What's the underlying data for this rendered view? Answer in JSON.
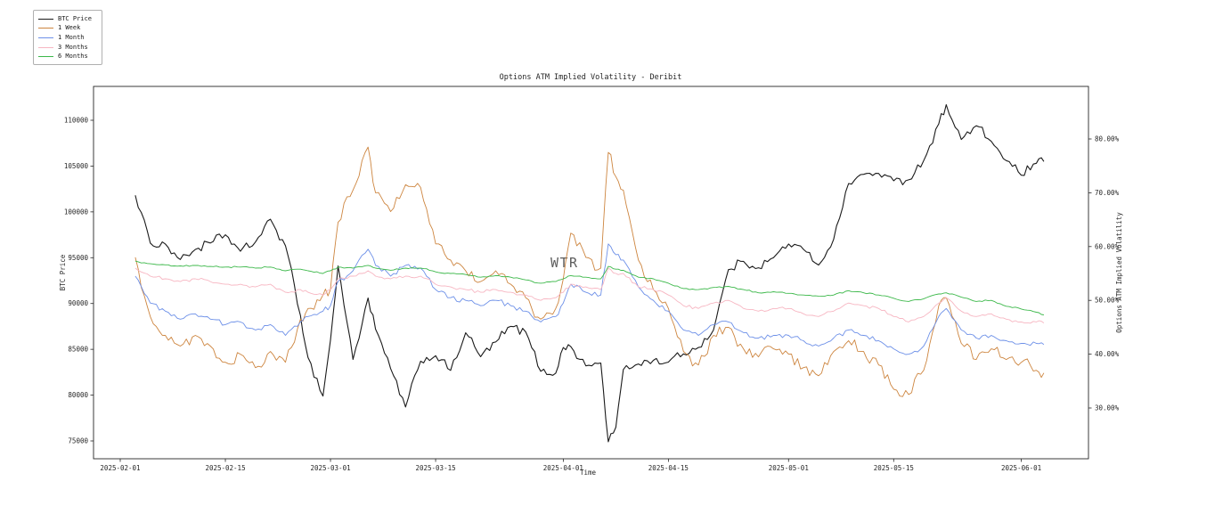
{
  "title": "Options ATM Implied Volatility - Deribit",
  "watermark": "WTR",
  "axes": {
    "x": {
      "label": "Time",
      "ticks": [
        "2025-02-01",
        "2025-02-15",
        "2025-03-01",
        "2025-03-15",
        "2025-04-01",
        "2025-04-15",
        "2025-05-01",
        "2025-05-15",
        "2025-06-01"
      ]
    },
    "y_left": {
      "label": "BTC Price",
      "ticks": [
        "110000",
        "105000",
        "100000",
        "95000",
        "90000",
        "85000",
        "80000",
        "75000"
      ]
    },
    "y_right": {
      "label": "Options ATM Implied Volatility",
      "ticks": [
        "80.00%",
        "70.00%",
        "60.00%",
        "50.00%",
        "40.00%",
        "30.00%"
      ]
    }
  },
  "legend": [
    {
      "label": "BTC Price",
      "color": "#1a1a1a"
    },
    {
      "label": "1 Week",
      "color": "#cd853f"
    },
    {
      "label": "1 Month",
      "color": "#6d90e8"
    },
    {
      "label": "3 Months",
      "color": "#f7b6c2"
    },
    {
      "label": "6 Months",
      "color": "#3cb84a"
    }
  ],
  "chart_data": {
    "type": "line",
    "title": "Options ATM Implied Volatility - Deribit",
    "xlabel": "Time",
    "ylabel_left": "BTC Price",
    "ylabel_right": "Options ATM Implied Volatility",
    "x_tick_labels": [
      "2025-02-01",
      "2025-02-15",
      "2025-03-01",
      "2025-03-15",
      "2025-04-01",
      "2025-04-15",
      "2025-05-01",
      "2025-05-15",
      "2025-06-01"
    ],
    "y_left_ticks": [
      110000,
      105000,
      100000,
      95000,
      90000,
      85000,
      80000,
      75000
    ],
    "y_right_ticks_pct": [
      80,
      70,
      60,
      50,
      40,
      30
    ],
    "grid": false,
    "legend_position": "outside-top-left",
    "dates": [
      "2025-02-03",
      "2025-02-05",
      "2025-02-07",
      "2025-02-09",
      "2025-02-11",
      "2025-02-13",
      "2025-02-15",
      "2025-02-17",
      "2025-02-19",
      "2025-02-21",
      "2025-02-23",
      "2025-02-25",
      "2025-02-26",
      "2025-02-28",
      "2025-03-01",
      "2025-03-02",
      "2025-03-04",
      "2025-03-06",
      "2025-03-07",
      "2025-03-09",
      "2025-03-11",
      "2025-03-13",
      "2025-03-15",
      "2025-03-17",
      "2025-03-19",
      "2025-03-21",
      "2025-03-23",
      "2025-03-25",
      "2025-03-27",
      "2025-03-29",
      "2025-03-31",
      "2025-04-01",
      "2025-04-02",
      "2025-04-04",
      "2025-04-06",
      "2025-04-07",
      "2025-04-08",
      "2025-04-09",
      "2025-04-11",
      "2025-04-13",
      "2025-04-15",
      "2025-04-17",
      "2025-04-19",
      "2025-04-21",
      "2025-04-23",
      "2025-04-25",
      "2025-04-27",
      "2025-04-29",
      "2025-05-01",
      "2025-05-03",
      "2025-05-05",
      "2025-05-07",
      "2025-05-09",
      "2025-05-11",
      "2025-05-13",
      "2025-05-15",
      "2025-05-17",
      "2025-05-19",
      "2025-05-21",
      "2025-05-22",
      "2025-05-24",
      "2025-05-26",
      "2025-05-28",
      "2025-05-30",
      "2025-06-01",
      "2025-06-03",
      "2025-06-04"
    ],
    "series": [
      {
        "name": "BTC Price",
        "axis": "left",
        "color": "#1a1a1a",
        "unit": "USD",
        "values": [
          101800,
          96600,
          96500,
          94800,
          95900,
          96600,
          97500,
          95700,
          96700,
          99200,
          96300,
          88700,
          84100,
          79900,
          86000,
          94100,
          83900,
          90600,
          87200,
          82900,
          78700,
          83700,
          84300,
          82700,
          86800,
          84200,
          85800,
          87500,
          86900,
          82600,
          82400,
          85200,
          85300,
          83200,
          83500,
          74900,
          76500,
          82800,
          83400,
          83800,
          83600,
          84500,
          85200,
          87100,
          93700,
          94600,
          93900,
          95000,
          96500,
          95900,
          94200,
          97000,
          103100,
          104100,
          104200,
          103400,
          103500,
          105600,
          109600,
          111700,
          107900,
          109400,
          107700,
          105600,
          104000,
          105300,
          105500
        ]
      },
      {
        "name": "1 Week",
        "axis": "right",
        "color": "#cd853f",
        "unit": "%",
        "values": [
          58.0,
          47.0,
          43.5,
          41.5,
          43.5,
          41.5,
          38.5,
          40.0,
          37.5,
          40.5,
          38.5,
          46.5,
          48.5,
          51.0,
          52.0,
          64.5,
          70.5,
          78.5,
          70.0,
          66.5,
          71.5,
          71.0,
          60.5,
          57.5,
          55.5,
          53.5,
          55.5,
          53.0,
          50.5,
          46.5,
          48.5,
          54.0,
          62.5,
          58.0,
          56.0,
          77.5,
          73.0,
          70.5,
          57.5,
          52.0,
          48.5,
          40.5,
          38.0,
          43.5,
          45.0,
          41.0,
          39.5,
          41.0,
          40.0,
          37.5,
          36.0,
          40.5,
          42.5,
          40.5,
          38.0,
          33.5,
          32.5,
          37.0,
          49.0,
          50.5,
          42.0,
          39.0,
          41.0,
          39.0,
          38.5,
          37.0,
          36.5
        ]
      },
      {
        "name": "1 Month",
        "axis": "right",
        "color": "#6d90e8",
        "unit": "%",
        "values": [
          54.5,
          49.5,
          48.0,
          46.5,
          47.5,
          46.5,
          45.5,
          46.0,
          44.5,
          45.5,
          43.5,
          46.0,
          47.0,
          48.0,
          49.0,
          53.5,
          55.5,
          59.5,
          56.5,
          54.5,
          56.5,
          56.0,
          52.0,
          50.5,
          50.0,
          49.0,
          50.0,
          49.0,
          48.0,
          46.0,
          47.0,
          49.5,
          53.0,
          51.5,
          51.0,
          60.5,
          58.5,
          57.5,
          52.5,
          50.0,
          48.0,
          44.5,
          43.5,
          45.5,
          46.0,
          44.0,
          43.0,
          43.5,
          43.5,
          42.5,
          41.5,
          43.0,
          44.5,
          43.5,
          42.5,
          41.0,
          40.0,
          41.5,
          47.0,
          48.5,
          44.5,
          43.0,
          43.5,
          42.5,
          42.0,
          42.0,
          41.8
        ]
      },
      {
        "name": "3 Months",
        "axis": "right",
        "color": "#f7b6c2",
        "unit": "%",
        "values": [
          56.0,
          54.5,
          54.0,
          53.5,
          54.0,
          53.5,
          53.0,
          53.0,
          52.5,
          53.0,
          51.5,
          52.0,
          51.5,
          51.0,
          52.0,
          54.0,
          54.5,
          55.5,
          54.5,
          54.0,
          54.5,
          54.5,
          53.0,
          52.5,
          52.0,
          51.5,
          52.0,
          51.5,
          51.0,
          50.0,
          50.5,
          51.5,
          53.0,
          52.5,
          52.0,
          56.0,
          55.0,
          55.0,
          52.5,
          52.0,
          51.0,
          49.0,
          48.5,
          49.5,
          50.0,
          48.5,
          48.0,
          48.5,
          48.5,
          47.5,
          47.0,
          48.0,
          49.5,
          49.0,
          48.5,
          47.0,
          46.0,
          47.0,
          49.5,
          50.5,
          48.0,
          47.0,
          47.5,
          46.5,
          46.0,
          46.0,
          45.8
        ]
      },
      {
        "name": "6 Months",
        "axis": "right",
        "color": "#3cb84a",
        "unit": "%",
        "values": [
          57.3,
          56.8,
          56.6,
          56.4,
          56.5,
          56.3,
          56.2,
          56.2,
          56.0,
          56.2,
          55.5,
          55.8,
          55.5,
          55.0,
          55.5,
          56.2,
          56.0,
          56.5,
          56.0,
          55.6,
          56.0,
          56.0,
          55.3,
          55.0,
          54.8,
          54.3,
          54.6,
          54.3,
          53.8,
          53.2,
          53.5,
          54.0,
          54.6,
          54.3,
          54.0,
          56.3,
          55.8,
          55.6,
          54.3,
          54.0,
          53.2,
          52.2,
          52.0,
          52.4,
          52.6,
          52.0,
          51.4,
          51.6,
          51.3,
          51.0,
          50.8,
          51.0,
          51.8,
          51.4,
          51.0,
          50.4,
          49.8,
          50.3,
          51.2,
          51.4,
          50.6,
          49.8,
          50.0,
          48.9,
          48.4,
          47.8,
          47.3
        ]
      }
    ],
    "y_left_range": [
      73050,
      113700
    ],
    "y_right_range_pct": [
      20.6,
      89.8
    ]
  }
}
